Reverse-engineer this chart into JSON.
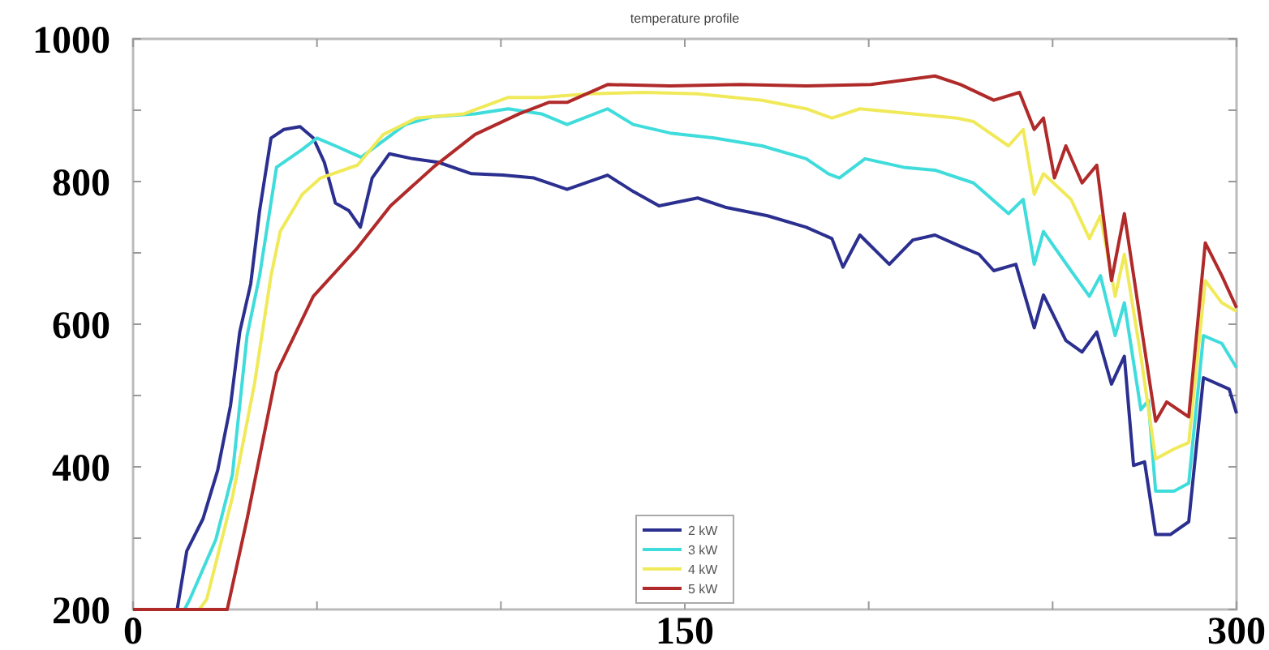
{
  "chart_data": {
    "type": "line",
    "title": "temperature profile",
    "xlim": [
      0,
      300
    ],
    "ylim": [
      200,
      1000
    ],
    "xticks": [
      0,
      {
        "value": 50,
        "label": null
      },
      {
        "value": 100,
        "label": null
      },
      150,
      {
        "value": 200,
        "label": null
      },
      {
        "value": 250,
        "label": null
      },
      300
    ],
    "yticks": [
      200,
      {
        "value": 300,
        "label": null
      },
      400,
      {
        "value": 500,
        "label": null
      },
      600,
      {
        "value": 700,
        "label": null
      },
      800,
      {
        "value": 900,
        "label": null
      },
      1000
    ],
    "legend": "bottom",
    "grid": false,
    "marker": "none",
    "line_style": "solid",
    "series": [
      {
        "name": "2 kW",
        "color": "#2b2f8f",
        "x": [
          0,
          12,
          14.6,
          19,
          23,
          26.5,
          29,
          32,
          34.4,
          37.5,
          41,
          45.4,
          49,
          52,
          55,
          58.7,
          61.8,
          65,
          69.7,
          76,
          83,
          92,
          100.6,
          109,
          118,
          129,
          136,
          143,
          153.5,
          161,
          172.5,
          183,
          190,
          193,
          197.6,
          205.6,
          212,
          218,
          225,
          230,
          234,
          240,
          245,
          247.5,
          253.6,
          258,
          262,
          266,
          269.5,
          272,
          275,
          278,
          282,
          287,
          291,
          298,
          300
        ],
        "values": [
          200,
          200,
          282,
          327,
          395,
          486,
          589,
          657,
          759,
          861,
          873,
          877,
          861,
          827,
          770,
          759,
          736,
          805,
          839,
          832,
          827,
          811,
          809,
          805,
          789,
          809,
          786,
          766,
          777,
          764,
          752,
          736,
          720,
          680,
          725,
          684,
          718,
          725,
          709,
          698,
          675,
          684,
          595,
          641,
          577,
          561,
          589,
          516,
          555,
          402,
          407,
          305,
          305,
          323,
          525,
          509,
          475
        ]
      },
      {
        "name": "3 kW",
        "color": "#40dcdc",
        "x": [
          0,
          14,
          15.4,
          22.5,
          27,
          31,
          34.4,
          39,
          46,
          50,
          55,
          62,
          68,
          74,
          81.6,
          93,
          102,
          111,
          118,
          129,
          136,
          146,
          158,
          171,
          183,
          189,
          192,
          199,
          209.5,
          218,
          228.5,
          238,
          242,
          245,
          247.5,
          255,
          260,
          263,
          267,
          269.5,
          274,
          276,
          278,
          283,
          287,
          291,
          296,
          300
        ],
        "values": [
          200,
          200,
          214,
          298,
          389,
          584,
          668,
          820,
          845,
          861,
          850,
          834,
          857,
          880,
          891,
          895,
          902,
          895,
          880,
          902,
          880,
          868,
          861,
          850,
          832,
          811,
          805,
          832,
          820,
          816,
          798,
          755,
          775,
          684,
          730,
          675,
          639,
          668,
          584,
          630,
          480,
          493,
          366,
          366,
          377,
          584,
          573,
          539
        ]
      },
      {
        "name": "4 kW",
        "color": "#f0ea5a",
        "x": [
          0,
          18,
          20,
          27,
          33,
          37.5,
          40,
          46,
          51,
          61,
          68,
          77,
          90,
          102,
          111,
          124,
          139,
          153.5,
          171,
          183,
          190,
          197.6,
          212,
          224,
          228.5,
          238,
          242,
          245,
          247.5,
          255,
          260,
          263,
          267,
          269.5,
          274,
          278,
          283,
          287,
          291.5,
          296,
          300
        ],
        "values": [
          200,
          200,
          214,
          357,
          516,
          668,
          730,
          782,
          805,
          823,
          866,
          889,
          895,
          918,
          918,
          923,
          925,
          923,
          914,
          902,
          889,
          902,
          895,
          889,
          884,
          850,
          873,
          782,
          811,
          775,
          720,
          752,
          639,
          698,
          555,
          411,
          425,
          434,
          661,
          630,
          618
        ]
      },
      {
        "name": "5 kW",
        "color": "#b02a2a",
        "x": [
          0,
          25.6,
          31,
          39,
          49,
          61,
          70,
          81.6,
          93,
          105,
          113,
          118,
          129,
          146,
          165,
          183,
          200.6,
          218,
          225,
          234,
          241,
          245,
          247.5,
          250.5,
          253.6,
          258,
          262,
          266,
          269.5,
          274,
          278,
          281,
          287,
          291.5,
          296,
          300
        ],
        "values": [
          200,
          200,
          327,
          532,
          639,
          707,
          766,
          820,
          866,
          895,
          911,
          911,
          936,
          934,
          936,
          934,
          936,
          948,
          936,
          914,
          925,
          873,
          889,
          805,
          850,
          798,
          823,
          661,
          755,
          600,
          464,
          491,
          470,
          714,
          668,
          623
        ]
      }
    ]
  }
}
